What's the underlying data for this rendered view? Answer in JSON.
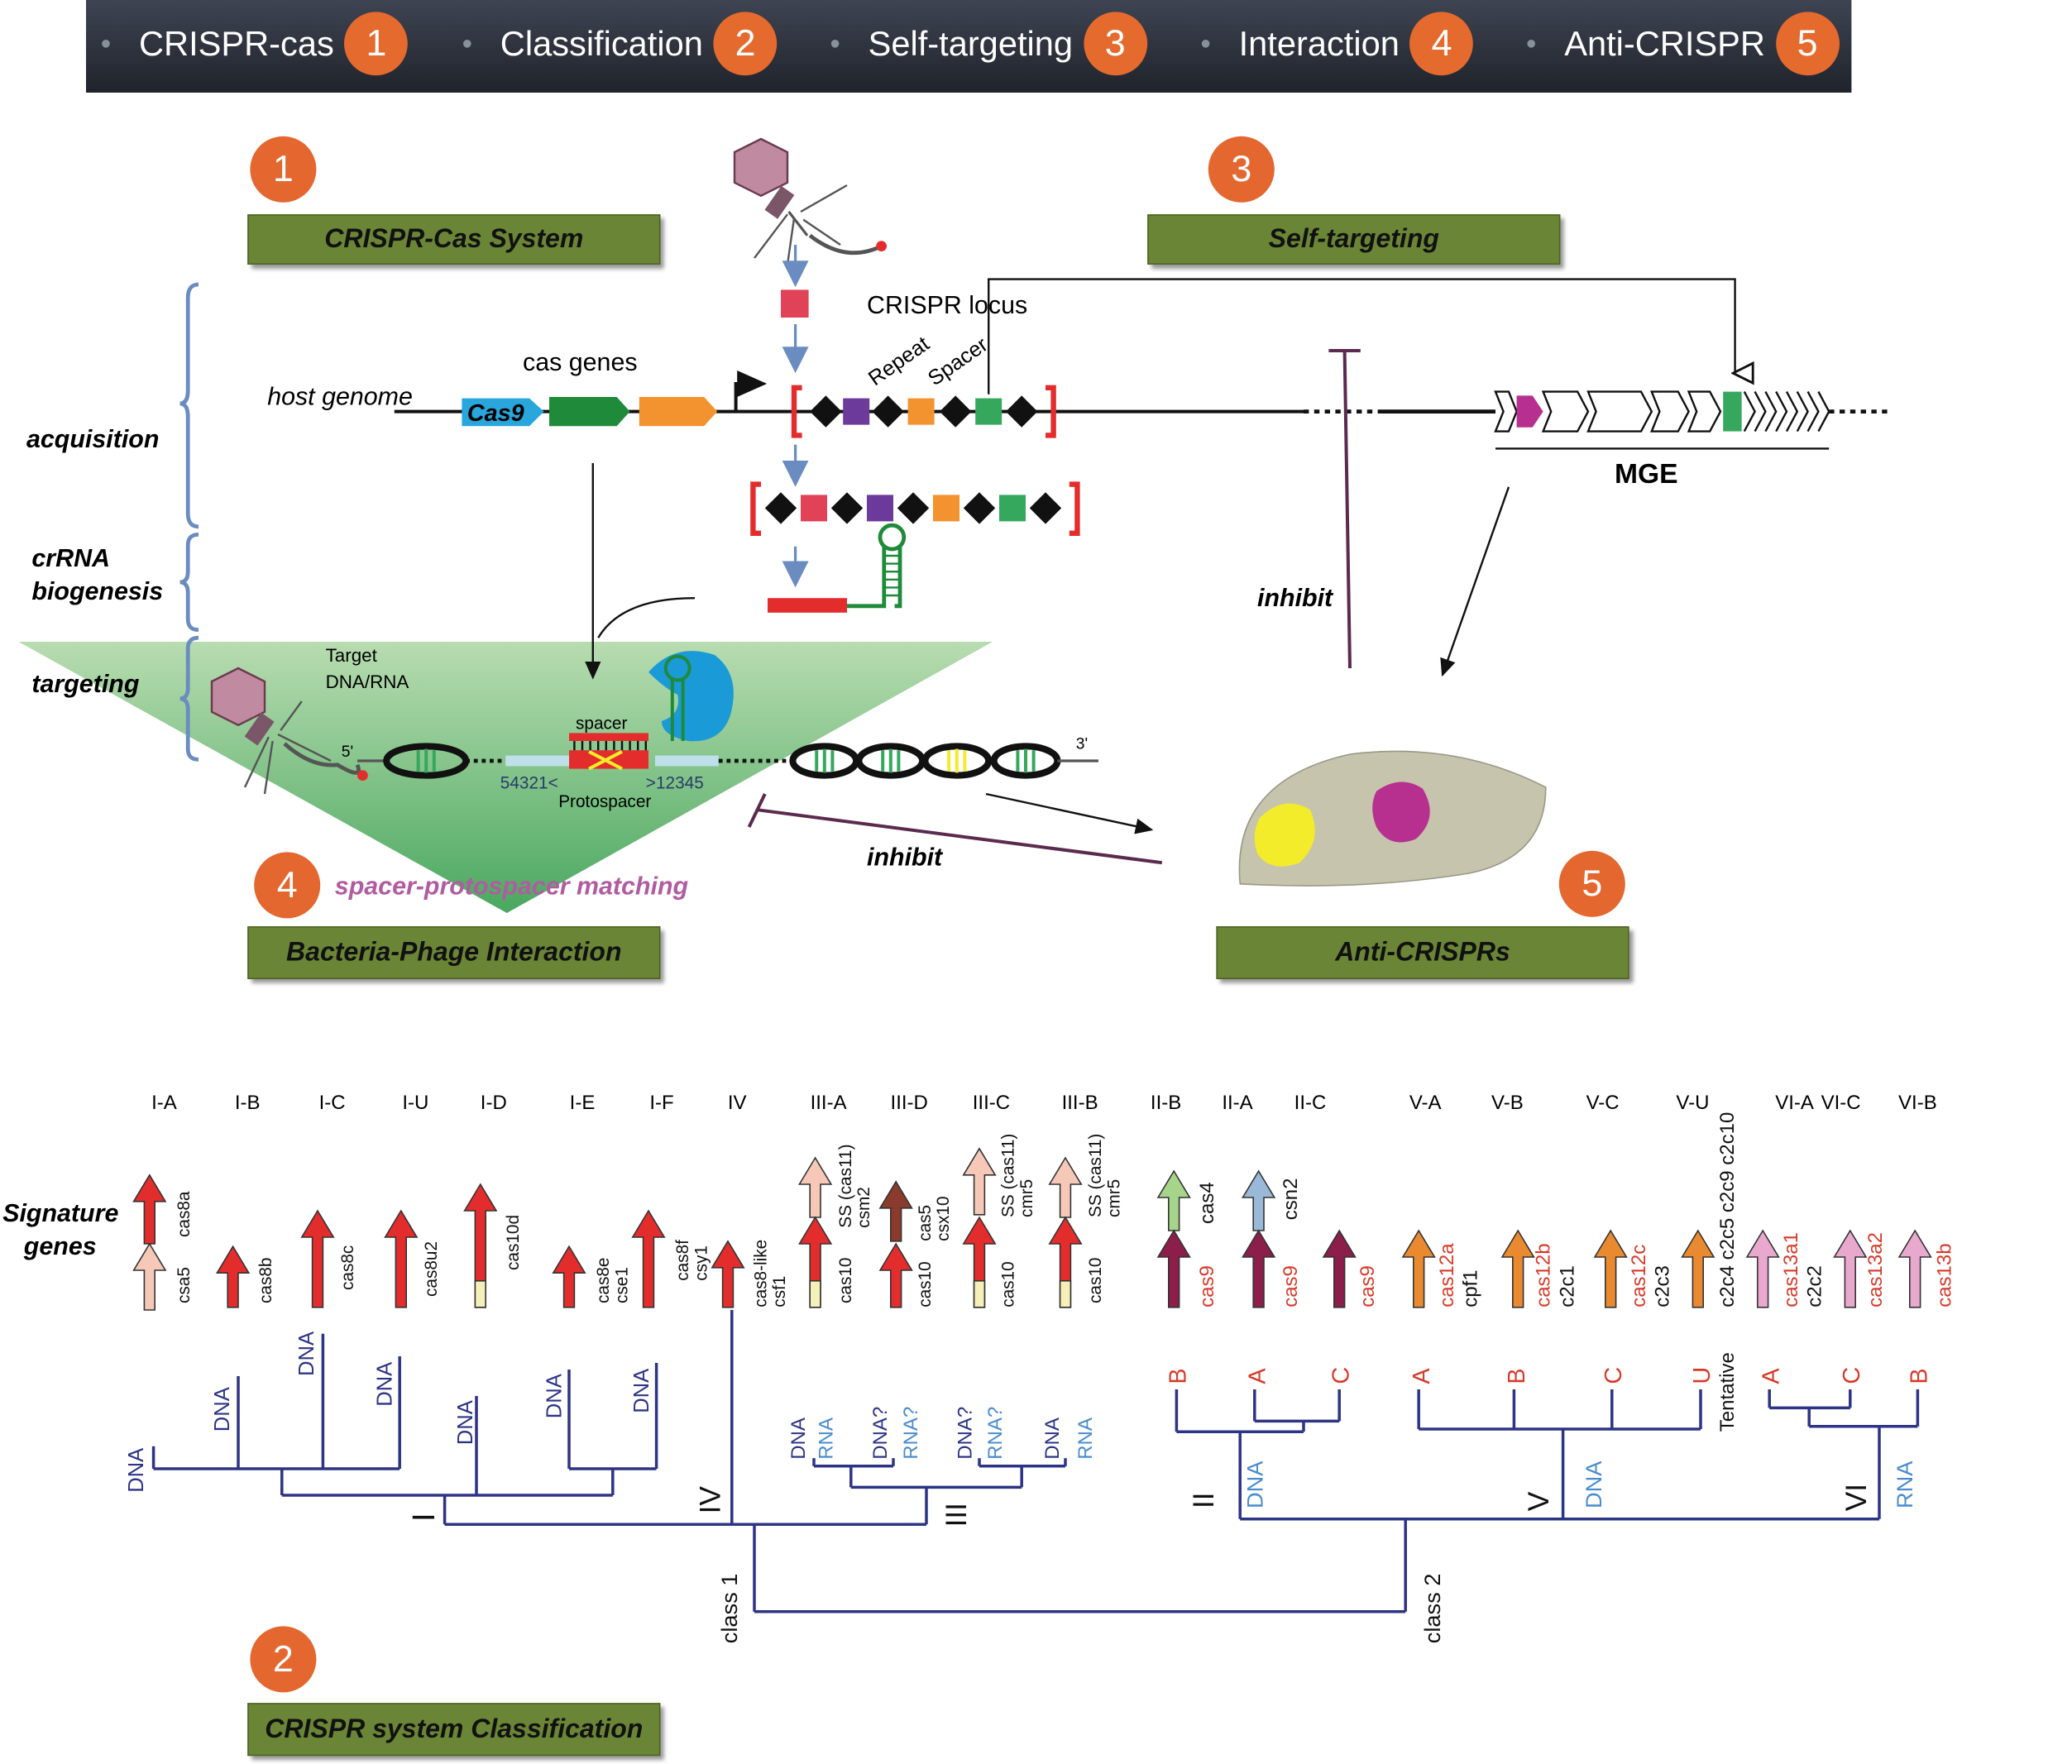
{
  "nav": {
    "items": [
      {
        "label": "CRISPR-cas",
        "num": "1"
      },
      {
        "label": "Classification",
        "num": "2"
      },
      {
        "label": "Self-targeting",
        "num": "3"
      },
      {
        "label": "Interaction",
        "num": "4"
      },
      {
        "label": "Anti-CRISPR",
        "num": "5"
      }
    ]
  },
  "sections": [
    {
      "num": "1",
      "title": "CRISPR-Cas System"
    },
    {
      "num": "3",
      "title": "Self-targeting"
    },
    {
      "num": "4",
      "title": "Bacteria-Phage Interaction"
    },
    {
      "num": "5",
      "title": "Anti-CRISPRs"
    },
    {
      "num": "2",
      "title": "CRISPR system Classification"
    }
  ],
  "diagram": {
    "stages": [
      "acquisition",
      "crRNA",
      "biogenesis",
      "targeting"
    ],
    "host_genome": "host genome",
    "cas_genes": "cas genes",
    "cas9": "Cas9",
    "crispr_locus": "CRISPR locus",
    "repeat": "Repeat",
    "spacer": "Spacer",
    "mge": "MGE",
    "inhibit": "inhibit",
    "target": "Target",
    "target_type": "DNA/RNA",
    "spacer_small": "spacer",
    "protospacer": "Protospacer",
    "pam_left": "54321<",
    "pam_right": ">12345",
    "five_prime": "5'",
    "three_prime": "3'",
    "matching": "spacer-protospacer matching",
    "colors": {
      "accent": "#e3672f",
      "section_box": "#6b8536",
      "bracket": "#6a8cc0",
      "red": "#e32d2d",
      "magenta": "#b8308f"
    }
  },
  "classification": {
    "subtypes": [
      "I-A",
      "I-B",
      "I-C",
      "I-U",
      "I-D",
      "I-E",
      "I-F",
      "IV",
      "III-A",
      "III-D",
      "III-C",
      "III-B",
      "II-B",
      "II-A",
      "II-C",
      "V-A",
      "V-B",
      "V-C",
      "V-U",
      "VI-A",
      "VI-C",
      "VI-B"
    ],
    "signature_label": [
      "Signature",
      "genes"
    ],
    "gene_labels": {
      "IA": [
        "cas8a",
        "csa5"
      ],
      "IB": [
        "cas8b"
      ],
      "IC": [
        "cas8c"
      ],
      "IU": [
        "cas8u2"
      ],
      "ID": [
        "cas10d"
      ],
      "IE": [
        "cas8e",
        "cse1"
      ],
      "IF": [
        "cas8f",
        "csy1"
      ],
      "IV": [
        "cas8-like",
        "csf1"
      ],
      "IIIA": [
        "SS (cas11)",
        "csm2",
        "cas10"
      ],
      "IIID": [
        "cas5",
        "csx10",
        "cas10"
      ],
      "IIIC": [
        "SS (cas11)",
        "cmr5",
        "cas10"
      ],
      "IIIB": [
        "SS (cas11)",
        "cmr5",
        "cas10"
      ],
      "IIB": [
        "cas4",
        "cas9"
      ],
      "IIA": [
        "csn2",
        "cas9"
      ],
      "IIC": [
        "cas9"
      ],
      "VA": [
        "cas12a",
        "cpf1"
      ],
      "VB": [
        "cas12b",
        "c2c1"
      ],
      "VC": [
        "cas12c",
        "c2c3"
      ],
      "VU": [
        "c2c4 c2c5 c2c9 c2c10"
      ],
      "VIA": [
        "cas13a1",
        "c2c2"
      ],
      "VIC": [
        "cas13a2"
      ],
      "VIB": [
        "cas13b"
      ]
    },
    "tree_letters_II": [
      "B",
      "A",
      "C"
    ],
    "tree_letters_V": [
      "A",
      "B",
      "C",
      "U"
    ],
    "tree_letters_VI": [
      "A",
      "C",
      "B"
    ],
    "tentative": "Tentative",
    "dna": "DNA",
    "rna": "RNA",
    "dna_q": "DNA?",
    "rna_q": "RNA?",
    "roman": [
      "I",
      "IV",
      "III",
      "II",
      "V",
      "VI"
    ],
    "class1": "class 1",
    "class2": "class 2"
  }
}
